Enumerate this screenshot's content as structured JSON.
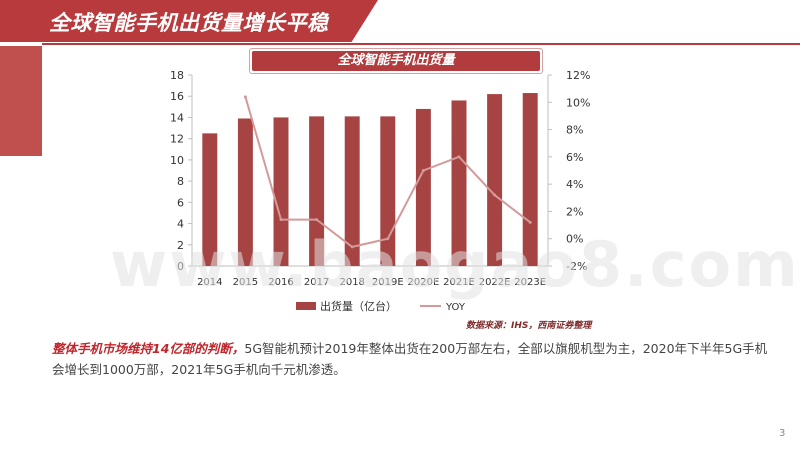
{
  "page": {
    "title": "全球智能手机出货量增长平稳",
    "page_number": "3",
    "source": "数据来源：IHS，西南证券整理",
    "watermark": "www.baogao8.com",
    "body_lead": "整体手机市场维持14亿部的判断，",
    "body_text": "5G智能机预计2019年整体出货在200万部左右，全部以旗舰机型为主，2020年下半年5G手机会增长到1000万部，2021年5G手机向千元机渗透。"
  },
  "colors": {
    "brand": "#b83a3c",
    "bar": "#a64343",
    "line": "#d49a9a",
    "axis": "#bfbfbf",
    "text": "#333333"
  },
  "chart_data": {
    "type": "bar",
    "title": "全球智能手机出货量",
    "categories": [
      "2014",
      "2015",
      "2016",
      "2017",
      "2018",
      "2019E",
      "2020E",
      "2021E",
      "2022E",
      "2023E"
    ],
    "series": [
      {
        "name": "出货量（亿台）",
        "type": "bar",
        "axis": "left",
        "values": [
          12.5,
          13.9,
          14.0,
          14.1,
          14.1,
          14.1,
          14.8,
          15.6,
          16.2,
          16.3
        ]
      },
      {
        "name": "YOY",
        "type": "line",
        "axis": "right",
        "values": [
          null,
          10.4,
          1.4,
          1.4,
          -0.6,
          0.0,
          5.0,
          6.0,
          3.2,
          1.2
        ]
      }
    ],
    "y_left": {
      "min": 0,
      "max": 18,
      "ticks": [
        "0",
        "2",
        "4",
        "6",
        "8",
        "10",
        "12",
        "14",
        "16",
        "18"
      ]
    },
    "y_right": {
      "min": -2,
      "max": 12,
      "ticks": [
        "-2%",
        "0%",
        "2%",
        "4%",
        "6%",
        "8%",
        "10%",
        "12%"
      ]
    },
    "legend": {
      "position": "bottom",
      "items": [
        "出货量（亿台）",
        "YOY"
      ]
    },
    "grid": false
  }
}
